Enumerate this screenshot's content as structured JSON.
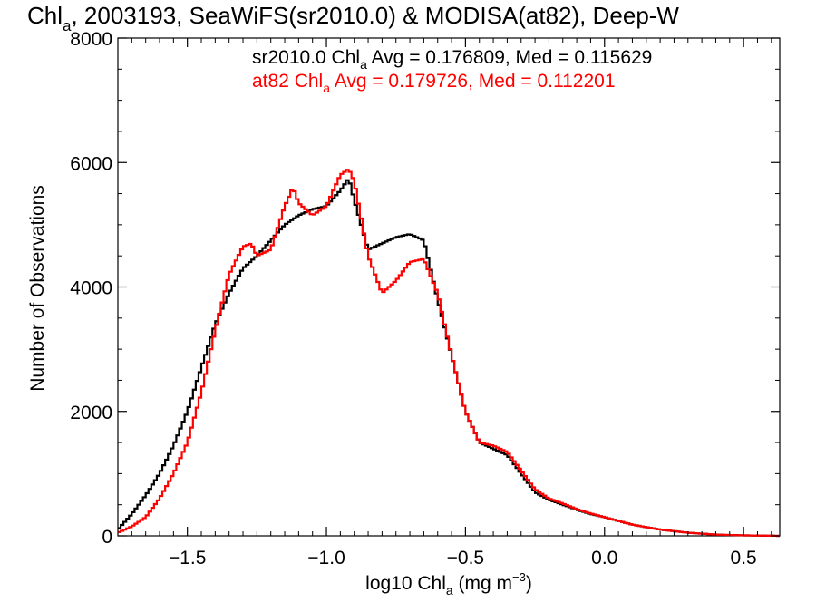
{
  "chart_data": {
    "type": "line",
    "title": {
      "pre": "Chl",
      "sub": "a",
      "post": ", 2003193, SeaWiFS(sr2010.0) & MODISA(at82), Deep-W"
    },
    "xlabel": {
      "pre": "log10 Chl",
      "sub": "a",
      "mid": " (mg m",
      "sup": "−3",
      "post": ")"
    },
    "ylabel": "Number of Observations",
    "xlim": [
      -1.75,
      0.63
    ],
    "ylim": [
      0,
      8000
    ],
    "xticks": [
      -1.5,
      -1.0,
      -0.5,
      0.0,
      0.5
    ],
    "xtick_labels": [
      "−1.5",
      "−1.0",
      "−0.5",
      "0.0",
      "0.5"
    ],
    "yticks": [
      0,
      2000,
      4000,
      6000,
      8000
    ],
    "ytick_labels": [
      "0",
      "2000",
      "4000",
      "6000",
      "8000"
    ],
    "grid": false,
    "legend_position": "top-right",
    "annotations": [
      {
        "pre": "sr2010.0 Chl",
        "sub": "a",
        "post": " Avg = 0.176809, Med = 0.115629",
        "color": "#000000"
      },
      {
        "pre": "at82 Chl",
        "sub": "a",
        "post": " Avg = 0.179726, Med = 0.112201",
        "color": "#ff0000"
      }
    ],
    "series": [
      {
        "color": "#000000",
        "x": [
          -1.75,
          -1.7,
          -1.65,
          -1.6,
          -1.55,
          -1.5,
          -1.45,
          -1.4,
          -1.35,
          -1.3,
          -1.25,
          -1.2,
          -1.15,
          -1.1,
          -1.05,
          -1.0,
          -0.95,
          -0.92,
          -0.9,
          -0.85,
          -0.8,
          -0.75,
          -0.7,
          -0.65,
          -0.6,
          -0.55,
          -0.5,
          -0.45,
          -0.4,
          -0.35,
          -0.3,
          -0.25,
          -0.2,
          -0.15,
          -0.1,
          -0.05,
          0.0,
          0.1,
          0.2,
          0.3,
          0.4,
          0.5,
          0.63
        ],
        "y": [
          100,
          350,
          650,
          1000,
          1450,
          2000,
          2700,
          3400,
          3900,
          4300,
          4500,
          4750,
          5000,
          5150,
          5250,
          5300,
          5550,
          5750,
          5400,
          4600,
          4700,
          4800,
          4850,
          4750,
          3800,
          2900,
          2000,
          1500,
          1400,
          1300,
          1000,
          700,
          580,
          500,
          420,
          350,
          300,
          180,
          100,
          50,
          20,
          8,
          0
        ]
      },
      {
        "color": "#ff0000",
        "x": [
          -1.75,
          -1.7,
          -1.65,
          -1.6,
          -1.55,
          -1.5,
          -1.45,
          -1.4,
          -1.35,
          -1.3,
          -1.27,
          -1.25,
          -1.2,
          -1.15,
          -1.12,
          -1.1,
          -1.05,
          -1.0,
          -0.95,
          -0.92,
          -0.9,
          -0.85,
          -0.8,
          -0.75,
          -0.7,
          -0.65,
          -0.6,
          -0.55,
          -0.5,
          -0.45,
          -0.4,
          -0.35,
          -0.3,
          -0.25,
          -0.2,
          -0.15,
          -0.1,
          -0.05,
          0.0,
          0.1,
          0.2,
          0.3,
          0.4,
          0.5,
          0.63
        ],
        "y": [
          50,
          150,
          300,
          600,
          1000,
          1500,
          2300,
          3300,
          4200,
          4650,
          4700,
          4500,
          4600,
          5300,
          5600,
          5350,
          5150,
          5300,
          5800,
          5900,
          5700,
          4500,
          3900,
          4100,
          4400,
          4450,
          3900,
          2900,
          2000,
          1500,
          1450,
          1350,
          1050,
          750,
          600,
          520,
          430,
          360,
          300,
          180,
          100,
          50,
          20,
          8,
          0
        ]
      }
    ]
  }
}
